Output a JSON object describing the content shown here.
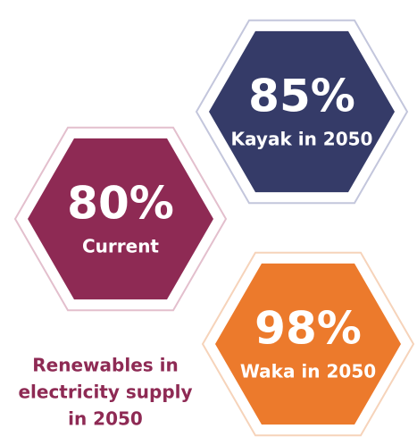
{
  "hexagons": [
    {
      "value": "80%",
      "label": "Current"
    },
    {
      "value": "85%",
      "label": "Kayak in 2050"
    },
    {
      "value": "98%",
      "label": "Waka in 2050"
    }
  ],
  "caption": [
    "Renewables in",
    "electricity supply",
    "in 2050"
  ]
}
